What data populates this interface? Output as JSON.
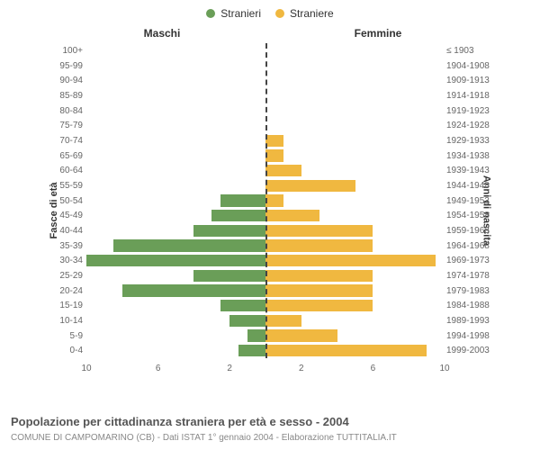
{
  "legend": {
    "male": "Stranieri",
    "female": "Straniere"
  },
  "columns": {
    "left": "Maschi",
    "right": "Femmine"
  },
  "yaxis_left": "Fasce di età",
  "yaxis_right": "Anni di nascita",
  "caption": "Popolazione per cittadinanza straniera per età e sesso - 2004",
  "subcaption": "COMUNE DI CAMPOMARINO (CB) - Dati ISTAT 1° gennaio 2004 - Elaborazione TUTTITALIA.IT",
  "chart": {
    "type": "pyramid-bar",
    "xlim": 10,
    "xticks": [
      2,
      6,
      10
    ],
    "male_color": "#6a9e58",
    "female_color": "#f0b840",
    "background_color": "#ffffff",
    "center_line_color": "#444444",
    "label_color": "#666666",
    "bar_height_pct": 80,
    "axis_font_size": 10,
    "legend_font_size": 12,
    "rows": [
      {
        "age": "100+",
        "birth": "≤ 1903",
        "m": 0,
        "f": 0
      },
      {
        "age": "95-99",
        "birth": "1904-1908",
        "m": 0,
        "f": 0
      },
      {
        "age": "90-94",
        "birth": "1909-1913",
        "m": 0,
        "f": 0
      },
      {
        "age": "85-89",
        "birth": "1914-1918",
        "m": 0,
        "f": 0
      },
      {
        "age": "80-84",
        "birth": "1919-1923",
        "m": 0,
        "f": 0
      },
      {
        "age": "75-79",
        "birth": "1924-1928",
        "m": 0,
        "f": 0
      },
      {
        "age": "70-74",
        "birth": "1929-1933",
        "m": 0,
        "f": 1
      },
      {
        "age": "65-69",
        "birth": "1934-1938",
        "m": 0,
        "f": 1
      },
      {
        "age": "60-64",
        "birth": "1939-1943",
        "m": 0,
        "f": 2
      },
      {
        "age": "55-59",
        "birth": "1944-1948",
        "m": 0,
        "f": 5
      },
      {
        "age": "50-54",
        "birth": "1949-1953",
        "m": 2.5,
        "f": 1
      },
      {
        "age": "45-49",
        "birth": "1954-1958",
        "m": 3,
        "f": 3
      },
      {
        "age": "40-44",
        "birth": "1959-1963",
        "m": 4,
        "f": 6
      },
      {
        "age": "35-39",
        "birth": "1964-1968",
        "m": 8.5,
        "f": 6
      },
      {
        "age": "30-34",
        "birth": "1969-1973",
        "m": 10,
        "f": 9.5
      },
      {
        "age": "25-29",
        "birth": "1974-1978",
        "m": 4,
        "f": 6
      },
      {
        "age": "20-24",
        "birth": "1979-1983",
        "m": 8,
        "f": 6
      },
      {
        "age": "15-19",
        "birth": "1984-1988",
        "m": 2.5,
        "f": 6
      },
      {
        "age": "10-14",
        "birth": "1989-1993",
        "m": 2,
        "f": 2
      },
      {
        "age": "5-9",
        "birth": "1994-1998",
        "m": 1,
        "f": 4
      },
      {
        "age": "0-4",
        "birth": "1999-2003",
        "m": 1.5,
        "f": 9
      }
    ]
  }
}
